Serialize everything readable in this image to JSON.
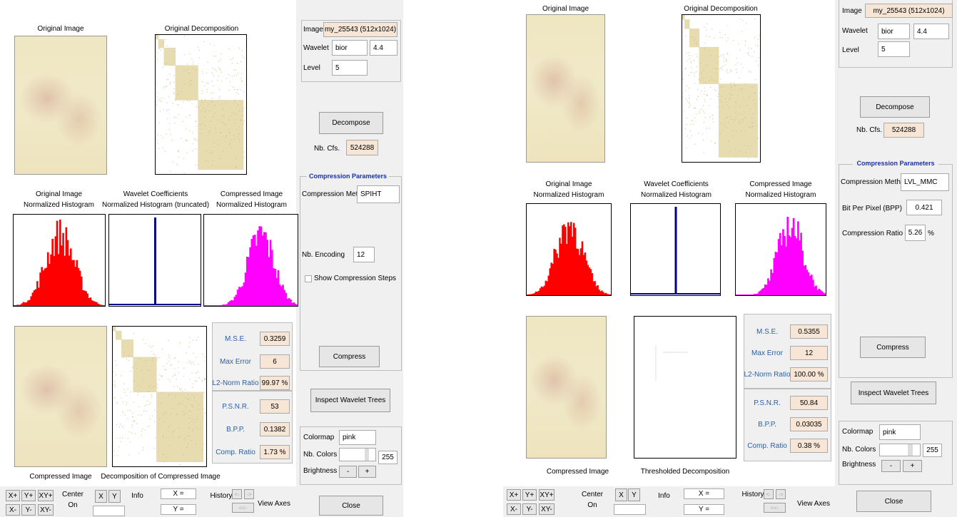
{
  "windows": [
    {
      "original_image_title": "Original Image",
      "decomposition_title": "Original Decomposition",
      "histograms": [
        [
          "Original Image",
          "Normalized Histogram"
        ],
        [
          "Wavelet Coefficients",
          "Normalized Histogram (truncated)"
        ],
        [
          "Compressed Image",
          "Normalized Histogram"
        ]
      ],
      "compressed_image_title": "Compressed Image",
      "compressed_decomposition_title": "Decomposition of Compressed Image",
      "stats": [
        {
          "label": "M.S.E.",
          "value": "0.3259"
        },
        {
          "label": "Max Error",
          "value": "6"
        },
        {
          "label": "L2-Norm Ratio",
          "value": "99.97 %"
        },
        {
          "label": "P.S.N.R.",
          "value": "53"
        },
        {
          "label": "B.P.P.",
          "value": "0.1382"
        },
        {
          "label": "Comp. Ratio",
          "value": "1.73 %"
        }
      ],
      "controls": {
        "image_label": "Image",
        "image": "my_25543  (512x1024)",
        "wavelet_label": "Wavelet",
        "wavelet": "bior",
        "wavelet_order": "4.4",
        "level_label": "Level",
        "level": "5",
        "decompose": "Decompose",
        "nb_cfs_label": "Nb. Cfs.",
        "nb_cfs": "524288",
        "compression_title": "Compression Parameters",
        "method_label": "Compression Method",
        "method": "SPIHT",
        "checkbox": "Show Compression Steps",
        "compress": "Compress",
        "inspect": "Inspect Wavelet Trees",
        "close": "Close"
      },
      "parameters": [
        {
          "label": "Nb. Encoding",
          "value": "12"
        }
      ],
      "colormap": {
        "label": "Colormap",
        "value": "pink",
        "nb_colors_label": "Nb. Colors",
        "nb_colors": "255",
        "brightness_label": "Brightness",
        "minus": "-",
        "plus": "+"
      },
      "toolbar": {
        "zoom": [
          "X+",
          "Y+",
          "XY+",
          "X-",
          "Y-",
          "XY-"
        ],
        "center": [
          "Center",
          "On"
        ],
        "axes": [
          "X",
          "Y"
        ],
        "info": "Info",
        "coords": [
          "X =",
          "Y ="
        ],
        "history": "History",
        "history_buttons": [
          "<-",
          "->",
          "<<-"
        ],
        "view_axes": "View Axes"
      }
    },
    {
      "original_image_title": "Original Image",
      "decomposition_title": "Original Decomposition",
      "histograms": [
        [
          "Original Image",
          "Normalized Histogram"
        ],
        [
          "Wavelet Coefficients",
          "Normalized Histogram"
        ],
        [
          "Compressed Image",
          "Normalized Histogram"
        ]
      ],
      "compressed_image_title": "Compressed Image",
      "compressed_decomposition_title": "Thresholded Decomposition",
      "stats": [
        {
          "label": "M.S.E.",
          "value": "0.5355"
        },
        {
          "label": "Max Error",
          "value": "12"
        },
        {
          "label": "L2-Norm Ratio",
          "value": "100.00 %"
        },
        {
          "label": "P.S.N.R.",
          "value": "50.84"
        },
        {
          "label": "B.P.P.",
          "value": "0.03035"
        },
        {
          "label": "Comp. Ratio",
          "value": "0.38 %"
        }
      ],
      "controls": {
        "image_label": "Image",
        "image": "my_25543  (512x1024)",
        "wavelet_label": "Wavelet",
        "wavelet": "bior",
        "wavelet_order": "4.4",
        "level_label": "Level",
        "level": "5",
        "decompose": "Decompose",
        "nb_cfs_label": "Nb. Cfs.",
        "nb_cfs": "524288",
        "compression_title": "Compression Parameters",
        "method_label": "Compression Method",
        "method": "LVL_MMC",
        "compress": "Compress",
        "inspect": "Inspect Wavelet Trees",
        "close": "Close"
      },
      "parameters": [
        {
          "label": "Bit Per Pixel (BPP)",
          "value": "0.421"
        },
        {
          "label": "Compression Ratio",
          "value": "5.26",
          "unit": "%"
        }
      ],
      "colormap": {
        "label": "Colormap",
        "value": "pink",
        "nb_colors_label": "Nb. Colors",
        "nb_colors": "255",
        "brightness_label": "Brightness",
        "minus": "-",
        "plus": "+"
      },
      "toolbar": {
        "zoom": [
          "X+",
          "Y+",
          "XY+",
          "X-",
          "Y-",
          "XY-"
        ],
        "center": [
          "Center",
          "On"
        ],
        "axes": [
          "X",
          "Y"
        ],
        "info": "Info",
        "coords": [
          "X =",
          "Y ="
        ],
        "history": "History",
        "history_buttons": [
          "<-",
          "->",
          "<<-"
        ],
        "view_axes": "View Axes"
      }
    }
  ]
}
